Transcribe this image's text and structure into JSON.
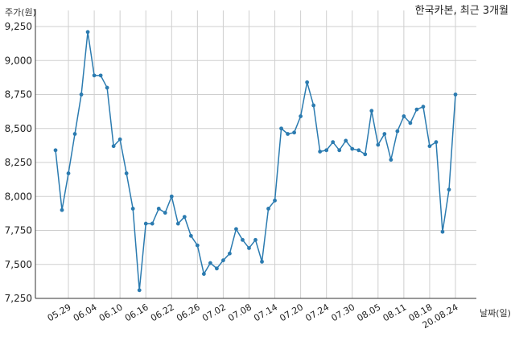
{
  "chart_data": {
    "type": "line",
    "title": "한국카본, 최근 3개월",
    "ylabel": "주가(원)",
    "xlabel": "날짜(일)",
    "ylim": [
      7250,
      9250
    ],
    "yticks": [
      7250,
      7500,
      7750,
      8000,
      8250,
      8500,
      8750,
      9000,
      9250
    ],
    "ytick_labels": [
      "7,250",
      "7,500",
      "7,750",
      "8,000",
      "8,250",
      "8,500",
      "8,750",
      "9,000",
      "9,250"
    ],
    "xtick_labels": [
      "05.29",
      "06.04",
      "06.10",
      "06.16",
      "06.22",
      "06.26",
      "07.02",
      "07.08",
      "07.14",
      "07.20",
      "07.24",
      "07.30",
      "08.05",
      "08.11",
      "08.18",
      "20.08.24"
    ],
    "xtick_index": [
      2,
      6,
      10,
      14,
      18,
      22,
      26,
      30,
      34,
      38,
      42,
      46,
      50,
      54,
      58,
      62
    ],
    "grid": true,
    "line_color": "#2b7bb0",
    "series": [
      {
        "values": [
          8340,
          7900,
          8170,
          8460,
          8750,
          9210,
          8890,
          8890,
          8800,
          8370,
          8420,
          8170,
          7910,
          7310,
          7800,
          7800,
          7910,
          7880,
          8000,
          7800,
          7850,
          7710,
          7640,
          7430,
          7510,
          7470,
          7530,
          7580,
          7760,
          7680,
          7620,
          7680,
          7520,
          7910,
          7970,
          8500,
          8460,
          8470,
          8590,
          8840,
          8670,
          8330,
          8340,
          8400,
          8340,
          8410,
          8350,
          8340,
          8310,
          8630,
          8380,
          8460,
          8270,
          8480,
          8590,
          8540,
          8640,
          8660,
          8370,
          8400,
          7740,
          8050,
          8750
        ]
      }
    ]
  }
}
